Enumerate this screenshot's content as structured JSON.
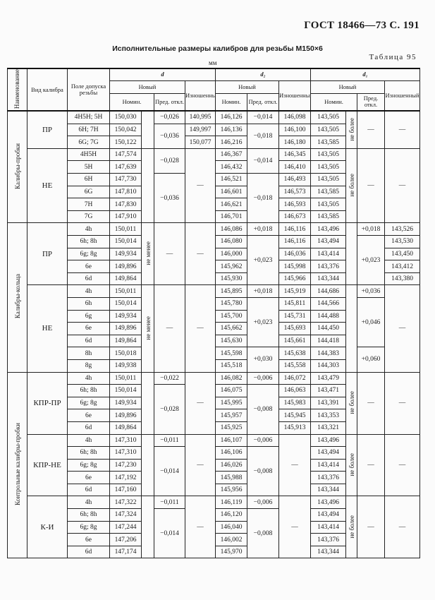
{
  "header": {
    "standard": "ГОСТ 18466—73 С. 191",
    "table_number": "Таблица 95",
    "caption": "Исполнительные размеры калибров для резьбы M150×6",
    "unit": "мм"
  },
  "columns": {
    "name": "Наименование",
    "gauge_type": "Вид калибра",
    "tolerance_field": "Поле допуска резьбы",
    "d": "d",
    "d2": "d₂",
    "d1": "d₁",
    "new": "Новый",
    "worn": "Изношенный",
    "nominal": "Номин.",
    "deviation": "Пред. откл."
  },
  "table": {
    "rows": [
      [
        "Калибры-пробки",
        "ПР",
        "4H5H; 5H",
        "150,030",
        "",
        "−0,026",
        "140,995",
        "146,126",
        "−0,014",
        "146,098",
        "143,505",
        "не более",
        "—",
        "—"
      ],
      [
        null,
        null,
        "6H; 7H",
        "150,042",
        null,
        "−0,036",
        "149,997",
        "146,136",
        "−0,018",
        "146,100",
        "143,505",
        null,
        null,
        null
      ],
      [
        null,
        null,
        "6G; 7G",
        "150,122",
        null,
        null,
        "150,077",
        "146,216",
        null,
        "146,180",
        "143,585",
        null,
        null,
        null
      ],
      [
        null,
        "НЕ",
        "4H5H",
        "147,574",
        "",
        "−0,028",
        "—",
        "146,367",
        "−0,014",
        "146,345",
        "143,505",
        "не более",
        "—",
        "—"
      ],
      [
        null,
        null,
        "5H",
        "147,639",
        null,
        null,
        null,
        "146,432",
        null,
        "146,410",
        "143,505",
        null,
        null,
        null
      ],
      [
        null,
        null,
        "6H",
        "147,730",
        null,
        "−0,036",
        null,
        "146,521",
        "−0,018",
        "146,493",
        "143,505",
        null,
        null,
        null
      ],
      [
        null,
        null,
        "6G",
        "147,810",
        null,
        null,
        null,
        "146,601",
        null,
        "146,573",
        "143,585",
        null,
        null,
        null
      ],
      [
        null,
        null,
        "7H",
        "147,830",
        null,
        null,
        null,
        "146,621",
        null,
        "146,593",
        "143,505",
        null,
        null,
        null
      ],
      [
        null,
        null,
        "7G",
        "147,910",
        null,
        null,
        null,
        "146,701",
        null,
        "146,673",
        "143,585",
        null,
        null,
        null
      ],
      [
        "Калибры-кольца",
        "ПР",
        "4h",
        "150,011",
        "не менее",
        "—",
        "—",
        "146,086",
        "+0,018",
        "146,116",
        "143,496",
        "",
        "+0,018",
        "143,526"
      ],
      [
        null,
        null,
        "6h; 8h",
        "150,014",
        null,
        null,
        null,
        "146,080",
        "+0,023",
        "146,116",
        "143,494",
        null,
        "+0,023",
        "143,530"
      ],
      [
        null,
        null,
        "6g; 8g",
        "149,934",
        null,
        null,
        null,
        "146,000",
        null,
        "146,036",
        "143,414",
        null,
        null,
        "143,450"
      ],
      [
        null,
        null,
        "6e",
        "149,896",
        null,
        null,
        null,
        "145,962",
        null,
        "145,998",
        "143,376",
        null,
        null,
        "143,412"
      ],
      [
        null,
        null,
        "6d",
        "149,864",
        null,
        null,
        null,
        "145,930",
        null,
        "145,966",
        "143,344",
        null,
        null,
        "143,380"
      ],
      [
        null,
        "НЕ",
        "4h",
        "150,011",
        "не менее",
        "—",
        "—",
        "145,895",
        "+0,018",
        "145,919",
        "144,686",
        "",
        "+0,036",
        "—"
      ],
      [
        null,
        null,
        "6h",
        "150,014",
        null,
        null,
        null,
        "145,780",
        "+0,023",
        "145,811",
        "144,566",
        null,
        "+0,046",
        null
      ],
      [
        null,
        null,
        "6g",
        "149,934",
        null,
        null,
        null,
        "145,700",
        null,
        "145,731",
        "144,488",
        null,
        null,
        null
      ],
      [
        null,
        null,
        "6e",
        "149,896",
        null,
        null,
        null,
        "145,662",
        null,
        "145,693",
        "144,450",
        null,
        null,
        null
      ],
      [
        null,
        null,
        "6d",
        "149,864",
        null,
        null,
        null,
        "145,630",
        null,
        "145,661",
        "144,418",
        null,
        null,
        null
      ],
      [
        null,
        null,
        "8h",
        "150,018",
        null,
        null,
        null,
        "145,598",
        "+0,030",
        "145,638",
        "144,383",
        null,
        "+0,060",
        null
      ],
      [
        null,
        null,
        "8g",
        "149,938",
        null,
        null,
        null,
        "145,518",
        null,
        "145,558",
        "144,303",
        null,
        null,
        null
      ],
      [
        "Контрольные калибры-пробки",
        "КПР-ПР",
        "4h",
        "150,011",
        "",
        "−0,022",
        "—",
        "146,082",
        "−0,006",
        "146,072",
        "143,479",
        "не более",
        "—",
        "—"
      ],
      [
        null,
        null,
        "6h; 8h",
        "150,014",
        null,
        "−0,028",
        null,
        "146,075",
        "−0,008",
        "146,063",
        "143,471",
        null,
        null,
        null
      ],
      [
        null,
        null,
        "6g; 8g",
        "149,934",
        null,
        null,
        null,
        "145,995",
        null,
        "145,983",
        "143,391",
        null,
        null,
        null
      ],
      [
        null,
        null,
        "6e",
        "149,896",
        null,
        null,
        null,
        "145,957",
        null,
        "145,945",
        "143,353",
        null,
        null,
        null
      ],
      [
        null,
        null,
        "6d",
        "149,864",
        null,
        null,
        null,
        "145,925",
        null,
        "145,913",
        "143,321",
        null,
        null,
        null
      ],
      [
        null,
        "КПР-НЕ",
        "4h",
        "147,310",
        "",
        "−0,011",
        "—",
        "146,107",
        "−0,006",
        "—",
        "143,496",
        "не более",
        "—",
        "—"
      ],
      [
        null,
        null,
        "6h; 8h",
        "147,310",
        null,
        "−0,014",
        null,
        "146,106",
        "−0,008",
        null,
        "143,494",
        null,
        null,
        null
      ],
      [
        null,
        null,
        "6g; 8g",
        "147,230",
        null,
        null,
        null,
        "146,026",
        null,
        null,
        "143,414",
        null,
        null,
        null
      ],
      [
        null,
        null,
        "6e",
        "147,192",
        null,
        null,
        null,
        "145,988",
        null,
        null,
        "143,376",
        null,
        null,
        null
      ],
      [
        null,
        null,
        "6d",
        "147,160",
        null,
        null,
        null,
        "145,956",
        null,
        null,
        "143,344",
        null,
        null,
        null
      ],
      [
        null,
        "К-И",
        "4h",
        "147,322",
        "",
        "−0,011",
        "—",
        "146,119",
        "−0,006",
        "—",
        "143,496",
        "не более",
        "—",
        "—"
      ],
      [
        null,
        null,
        "6h; 8h",
        "147,324",
        null,
        "−0,014",
        null,
        "146,120",
        "−0,008",
        null,
        "143,494",
        null,
        null,
        null
      ],
      [
        null,
        null,
        "6g; 8g",
        "147,244",
        null,
        null,
        null,
        "146,040",
        null,
        null,
        "143,414",
        null,
        null,
        null
      ],
      [
        null,
        null,
        "6e",
        "147,206",
        null,
        null,
        null,
        "146,002",
        null,
        null,
        "143,376",
        null,
        null,
        null
      ],
      [
        null,
        null,
        "6d",
        "147,174",
        null,
        null,
        null,
        "145,970",
        null,
        null,
        "143,344",
        null,
        null,
        null
      ]
    ]
  }
}
